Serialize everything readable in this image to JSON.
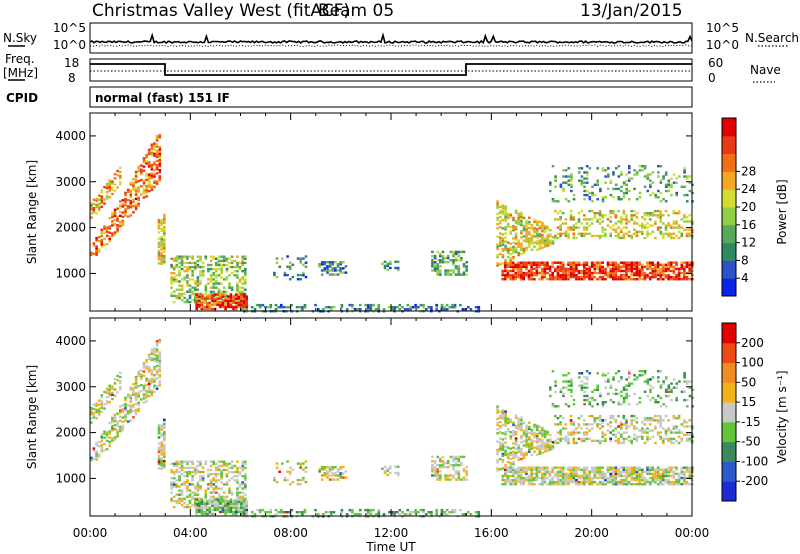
{
  "header": {
    "title": "Christmas Valley West (fitACF)",
    "beam": "Beam 05",
    "date": "13/Jan/2015"
  },
  "noise_panel": {
    "left_label": "N.Sky",
    "left_ticks": [
      "10^5",
      "10^0"
    ],
    "right_label": "N.Search",
    "right_ticks": [
      "10^5",
      "10^0"
    ]
  },
  "freq_panel": {
    "left_label_1": "Freq.",
    "left_label_2": "[MHz]",
    "left_ticks": [
      "18",
      "8"
    ],
    "right_label": "Nave",
    "right_ticks": [
      "60",
      "0"
    ]
  },
  "cpid": {
    "label": "CPID",
    "text": "normal (fast) 151 IF"
  },
  "chart_data": [
    {
      "type": "heatmap",
      "panel": "power",
      "xlabel": "Time UT",
      "ylabel": "Slant Range [km]",
      "x_range_hours": [
        0,
        24
      ],
      "xticks": [
        "00:00",
        "04:00",
        "08:00",
        "12:00",
        "16:00",
        "20:00",
        "00:00"
      ],
      "ylim": [
        180,
        4500
      ],
      "yticks": [
        1000,
        2000,
        3000,
        4000
      ],
      "colorbar": {
        "label": "Power [dB]",
        "ticks": [
          4,
          8,
          12,
          16,
          20,
          24,
          28
        ],
        "colors": [
          "#0b22e8",
          "#2d52c8",
          "#2f8a63",
          "#56a85a",
          "#8fd046",
          "#d4dc32",
          "#f5a623",
          "#f07018",
          "#e83a14",
          "#e00000"
        ]
      }
    },
    {
      "type": "heatmap",
      "panel": "velocity",
      "xlabel": "Time UT",
      "ylabel": "Slant Range [km]",
      "x_range_hours": [
        0,
        24
      ],
      "xticks": [
        "00:00",
        "04:00",
        "08:00",
        "12:00",
        "16:00",
        "20:00",
        "00:00"
      ],
      "ylim": [
        180,
        4500
      ],
      "yticks": [
        1000,
        2000,
        3000,
        4000
      ],
      "colorbar": {
        "label": "Velocity [m s⁻¹]",
        "ticks": [
          200,
          100,
          50,
          15,
          -15,
          -50,
          -100,
          -200
        ],
        "colors": [
          "#1c2bd6",
          "#2d59c9",
          "#3a8a5c",
          "#62c63a",
          "#c8c8c8",
          "#f0b418",
          "#f08c20",
          "#f04a14",
          "#e00000"
        ]
      }
    }
  ]
}
